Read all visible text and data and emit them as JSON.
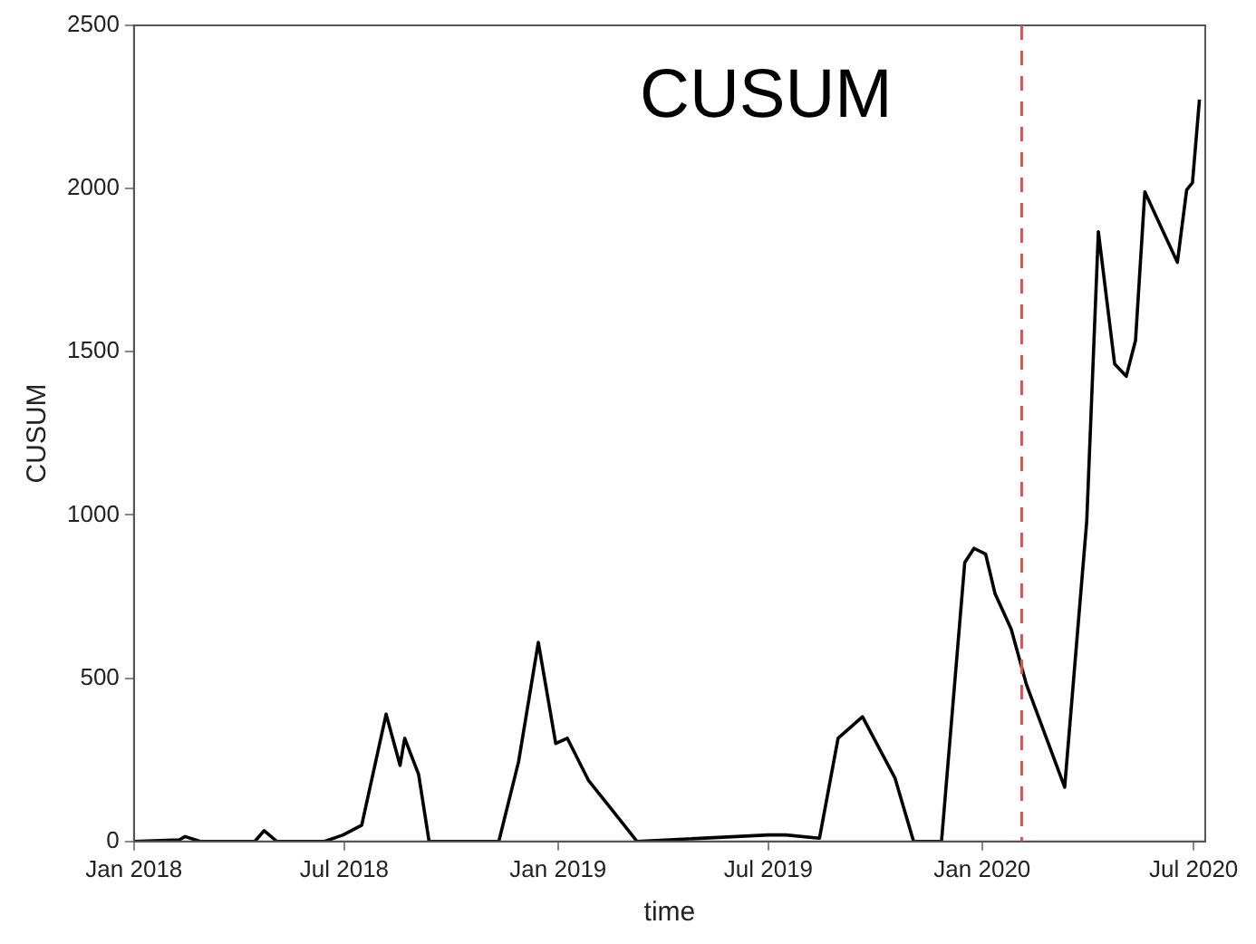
{
  "chart_data": {
    "type": "line",
    "title": "CUSUM",
    "xlabel": "time",
    "ylabel": "CUSUM",
    "x": [
      "2018-01-01",
      "2018-02-09",
      "2018-02-14",
      "2018-02-27",
      "2018-04-15",
      "2018-04-23",
      "2018-05-04",
      "2018-06-14",
      "2018-06-30",
      "2018-07-16",
      "2018-08-06",
      "2018-08-18",
      "2018-08-22",
      "2018-09-03",
      "2018-09-12",
      "2018-11-11",
      "2018-11-28",
      "2018-12-15",
      "2018-12-30",
      "2019-01-09",
      "2019-01-27",
      "2019-02-17",
      "2019-03-10",
      "2019-07-01",
      "2019-07-16",
      "2019-08-14",
      "2019-08-30",
      "2019-09-20",
      "2019-10-18",
      "2019-11-03",
      "2019-11-27",
      "2019-12-17",
      "2019-12-25",
      "2020-01-04",
      "2020-01-12",
      "2020-01-26",
      "2020-02-08",
      "2020-03-12",
      "2020-03-31",
      "2020-04-10",
      "2020-04-24",
      "2020-05-04",
      "2020-05-12",
      "2020-05-20",
      "2020-06-17",
      "2020-06-25",
      "2020-06-30",
      "2020-07-06"
    ],
    "series": [
      {
        "color": "#000000",
        "values": [
          0,
          5,
          15,
          0,
          0,
          33,
          0,
          0,
          20,
          50,
          390,
          233,
          316,
          205,
          0,
          0,
          244,
          610,
          300,
          316,
          188,
          94,
          0,
          20,
          20,
          10,
          316,
          382,
          194,
          0,
          0,
          854,
          898,
          880,
          760,
          650,
          482,
          166,
          981,
          1868,
          1463,
          1425,
          1535,
          1990,
          1774,
          1996,
          2018,
          2273
        ]
      }
    ],
    "xlim": [
      "2018-01-01",
      "2020-07-11"
    ],
    "xticks": [
      {
        "value": "2018-01-01",
        "label": "Jan 2018"
      },
      {
        "value": "2018-07-01",
        "label": "Jul 2018"
      },
      {
        "value": "2019-01-01",
        "label": "Jan 2019"
      },
      {
        "value": "2019-07-01",
        "label": "Jul 2019"
      },
      {
        "value": "2020-01-01",
        "label": "Jan 2020"
      },
      {
        "value": "2020-07-01",
        "label": "Jul 2020"
      }
    ],
    "ylim": [
      0,
      2500
    ],
    "yticks": [
      0,
      500,
      1000,
      1500,
      2000,
      2500
    ],
    "ref_lines": [
      {
        "axis": "x",
        "value": "2020-02-04",
        "color": "#d9534f",
        "line_style": "dashed"
      }
    ],
    "grid": false,
    "legend": false,
    "marker": "none",
    "line_style": "solid"
  }
}
